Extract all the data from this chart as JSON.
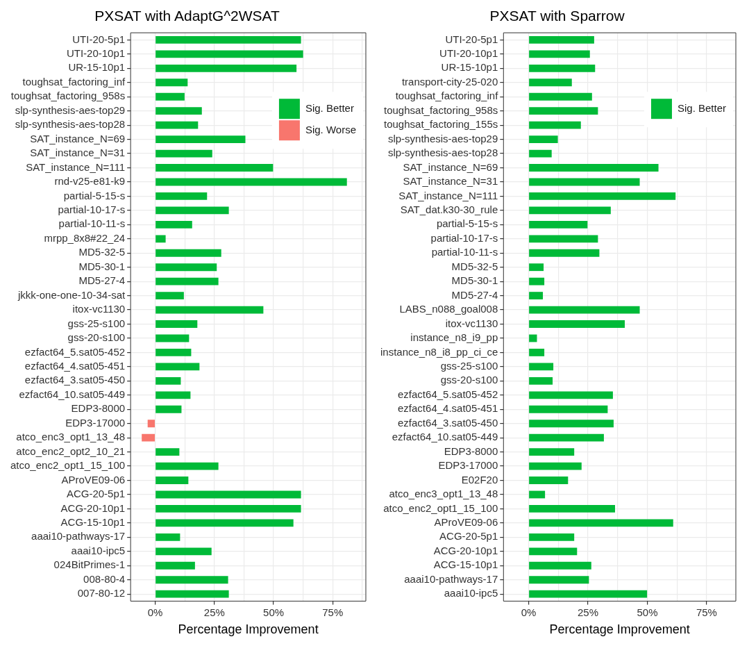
{
  "chart_data": [
    {
      "type": "bar",
      "title": "PXSAT with AdaptG^2WSAT",
      "xlabel": "Percentage Improvement",
      "orientation": "horizontal",
      "grid": true,
      "legend": "top right",
      "categories": [
        "UTI-20-5p1",
        "UTI-20-10p1",
        "UR-15-10p1",
        "toughsat_factoring_inf",
        "toughsat_factoring_958s",
        "slp-synthesis-aes-top29",
        "slp-synthesis-aes-top28",
        "SAT_instance_N=69",
        "SAT_instance_N=31",
        "SAT_instance_N=111",
        "rnd-v25-e81-k9",
        "partial-5-15-s",
        "partial-10-17-s",
        "partial-10-11-s",
        "mrpp_8x8#22_24",
        "MD5-32-5",
        "MD5-30-1",
        "MD5-27-4",
        "jkkk-one-one-10-34-sat",
        "itox-vc1130",
        "gss-25-s100",
        "gss-20-s100",
        "ezfact64_5.sat05-452",
        "ezfact64_4.sat05-451",
        "ezfact64_3.sat05-450",
        "ezfact64_10.sat05-449",
        "EDP3-8000",
        "EDP3-17000",
        "atco_enc3_opt1_13_48",
        "atco_enc2_opt2_10_21",
        "atco_enc2_opt1_15_100",
        "AProVE09-06",
        "ACG-20-5p1",
        "ACG-20-10p1",
        "ACG-15-10p1",
        "aaai10-pathways-17",
        "aaai10-ipc5",
        "024BitPrimes-1",
        "008-80-4",
        "007-80-12"
      ],
      "series": [
        {
          "name": "Sig. Better",
          "color": "#00ba38",
          "values": [
            61.6,
            62.5,
            59.7,
            13.7,
            12.4,
            19.7,
            18.1,
            38.1,
            24.1,
            49.8,
            81,
            21.9,
            31.1,
            15.6,
            4.4,
            27.9,
            26,
            26.7,
            12.1,
            45.7,
            17.8,
            14.3,
            15.2,
            18.7,
            10.8,
            14.9,
            11.1,
            null,
            null,
            10.2,
            26.7,
            14,
            61.6,
            61.6,
            58.4,
            10.5,
            23.8,
            16.8,
            30.8,
            31.1
          ]
        },
        {
          "name": "Sig. Worse",
          "color": "#f8766d",
          "values": [
            null,
            null,
            null,
            null,
            null,
            null,
            null,
            null,
            null,
            null,
            null,
            null,
            null,
            null,
            null,
            null,
            null,
            null,
            null,
            null,
            null,
            null,
            null,
            null,
            null,
            null,
            null,
            -3.2,
            -5.7,
            null,
            null,
            null,
            null,
            null,
            null,
            null,
            null,
            null,
            null,
            null
          ]
        }
      ],
      "xlim": [
        -10.4,
        89
      ],
      "xticks": [
        {
          "value": 0,
          "label": "0%"
        },
        {
          "value": 12.5,
          "label": null
        },
        {
          "value": 25,
          "label": "25%"
        },
        {
          "value": 37.5,
          "label": null
        },
        {
          "value": 50,
          "label": "50%"
        },
        {
          "value": 62.5,
          "label": null
        },
        {
          "value": 75,
          "label": "75%"
        },
        {
          "value": 87.5,
          "label": null
        }
      ]
    },
    {
      "type": "bar",
      "title": "PXSAT with Sparrow",
      "xlabel": "Percentage Improvement",
      "orientation": "horizontal",
      "grid": true,
      "legend": "top right",
      "categories": [
        "UTI-20-5p1",
        "UTI-20-10p1",
        "UR-15-10p1",
        "transport-city-25-020",
        "toughsat_factoring_inf",
        "toughsat_factoring_958s",
        "toughsat_factoring_155s",
        "slp-synthesis-aes-top29",
        "slp-synthesis-aes-top28",
        "SAT_instance_N=69",
        "SAT_instance_N=31",
        "SAT_instance_N=111",
        "SAT_dat.k30-30_rule",
        "partial-5-15-s",
        "partial-10-17-s",
        "partial-10-11-s",
        "MD5-32-5",
        "MD5-30-1",
        "MD5-27-4",
        "LABS_n088_goal008",
        "itox-vc1130",
        "instance_n8_i9_pp",
        "instance_n8_i8_pp_ci_ce",
        "gss-25-s100",
        "gss-20-s100",
        "ezfact64_5.sat05-452",
        "ezfact64_4.sat05-451",
        "ezfact64_3.sat05-450",
        "ezfact64_10.sat05-449",
        "EDP3-8000",
        "EDP3-17000",
        "E02F20",
        "atco_enc3_opt1_13_48",
        "atco_enc2_opt1_15_100",
        "AProVE09-06",
        "ACG-20-5p1",
        "ACG-20-10p1",
        "ACG-15-10p1",
        "aaai10-pathways-17",
        "aaai10-ipc5"
      ],
      "series": [
        {
          "name": "Sig. Better",
          "color": "#00ba38",
          "values": [
            27.6,
            25.8,
            28,
            18.2,
            26.7,
            29.2,
            22,
            12.3,
            9.7,
            54.7,
            46.8,
            61.9,
            34.6,
            24.8,
            29.2,
            29.8,
            6.3,
            6.6,
            6,
            46.8,
            40.5,
            3.5,
            6.6,
            10.4,
            10.1,
            35.5,
            33.3,
            35.8,
            31.7,
            19.2,
            22.3,
            16.6,
            6.9,
            36.4,
            60.9,
            19.2,
            20.4,
            26.4,
            25.4,
            49.9
          ]
        }
      ],
      "xlim": [
        -10.6,
        87.3
      ],
      "xticks": [
        {
          "value": 0,
          "label": "0%"
        },
        {
          "value": 12.5,
          "label": null
        },
        {
          "value": 25,
          "label": "25%"
        },
        {
          "value": 37.5,
          "label": null
        },
        {
          "value": 50,
          "label": "50%"
        },
        {
          "value": 62.5,
          "label": null
        },
        {
          "value": 75,
          "label": "75%"
        }
      ]
    }
  ]
}
